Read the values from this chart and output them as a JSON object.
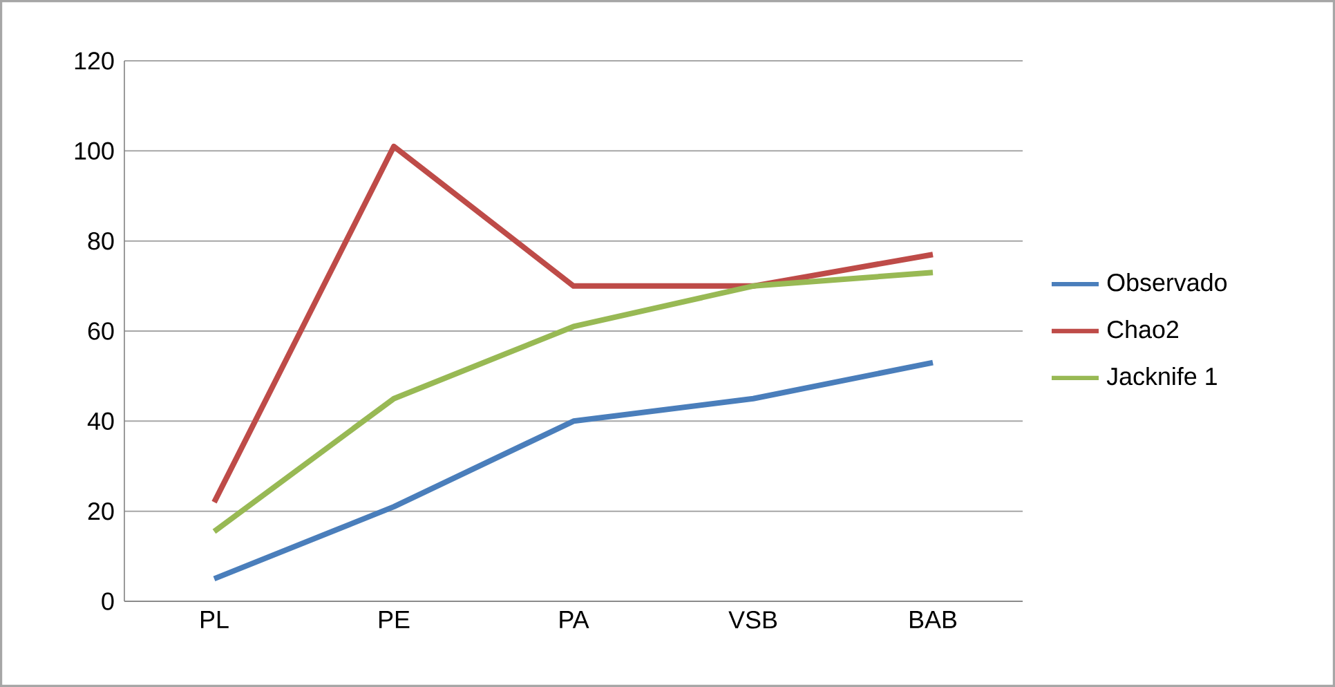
{
  "chart_data": {
    "type": "line",
    "categories": [
      "PL",
      "PE",
      "PA",
      "VSB",
      "BAB"
    ],
    "series": [
      {
        "name": "Observado",
        "color": "#4a7ebb",
        "values": [
          5,
          21,
          40,
          45,
          53
        ]
      },
      {
        "name": "Chao2",
        "color": "#be4b48",
        "values": [
          22,
          101,
          70,
          70,
          77
        ]
      },
      {
        "name": "Jacknife 1",
        "color": "#98b954",
        "values": [
          15.5,
          45,
          61,
          70,
          73
        ]
      }
    ],
    "ylim": [
      0,
      120
    ],
    "yticks": [
      0,
      20,
      40,
      60,
      80,
      100,
      120
    ],
    "grid": "y",
    "legend": "right",
    "marker": "none",
    "line_style": "solid"
  }
}
